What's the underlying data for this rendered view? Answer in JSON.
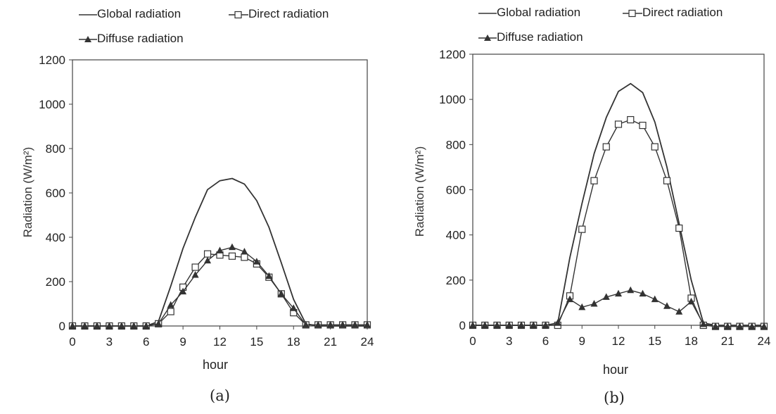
{
  "chart_data": [
    {
      "type": "line",
      "caption": "(a)",
      "xlabel": "hour",
      "ylabel": "Radiation (W/m²)",
      "xlim": [
        0,
        24
      ],
      "ylim": [
        0,
        1200
      ],
      "xticks": [
        0,
        3,
        6,
        9,
        12,
        15,
        18,
        21,
        24
      ],
      "yticks": [
        0,
        200,
        400,
        600,
        800,
        1000,
        1200
      ],
      "legend": {
        "position": "top-left, above plot"
      },
      "grid": false,
      "series": [
        {
          "name": "Global radiation",
          "marker": "none",
          "color": "#333333",
          "x": [
            0,
            1,
            2,
            3,
            4,
            5,
            6,
            7,
            8,
            9,
            10,
            11,
            12,
            13,
            14,
            15,
            16,
            17,
            18,
            19,
            20,
            21,
            22,
            23,
            24
          ],
          "y": [
            0,
            0,
            0,
            0,
            0,
            0,
            0,
            20,
            180,
            350,
            490,
            615,
            655,
            665,
            640,
            565,
            445,
            285,
            120,
            10,
            0,
            0,
            0,
            0,
            0
          ]
        },
        {
          "name": "Direct radiation",
          "marker": "square",
          "color": "#333333",
          "x": [
            0,
            1,
            2,
            3,
            4,
            5,
            6,
            7,
            8,
            9,
            10,
            11,
            12,
            13,
            14,
            15,
            16,
            17,
            18,
            19,
            20,
            21,
            22,
            23,
            24
          ],
          "y": [
            0,
            0,
            0,
            0,
            0,
            0,
            0,
            10,
            65,
            175,
            265,
            325,
            320,
            315,
            310,
            280,
            220,
            145,
            60,
            5,
            5,
            5,
            5,
            5,
            5
          ]
        },
        {
          "name": "Diffuse radiation",
          "marker": "triangle",
          "color": "#333333",
          "x": [
            0,
            1,
            2,
            3,
            4,
            5,
            6,
            7,
            8,
            9,
            10,
            11,
            12,
            13,
            14,
            15,
            16,
            17,
            18,
            19,
            20,
            21,
            22,
            23,
            24
          ],
          "y": [
            0,
            0,
            0,
            0,
            0,
            0,
            0,
            10,
            95,
            155,
            230,
            295,
            340,
            355,
            335,
            290,
            225,
            145,
            80,
            5,
            5,
            5,
            5,
            5,
            5
          ]
        }
      ]
    },
    {
      "type": "line",
      "caption": "(b)",
      "xlabel": "hour",
      "ylabel": "Radiation (W/m²)",
      "xlim": [
        0,
        24
      ],
      "ylim": [
        0,
        1200
      ],
      "xticks": [
        0,
        3,
        6,
        9,
        12,
        15,
        18,
        21,
        24
      ],
      "yticks": [
        0,
        200,
        400,
        600,
        800,
        1000,
        1200
      ],
      "legend": {
        "position": "top-left, above plot"
      },
      "grid": false,
      "series": [
        {
          "name": "Global radiation",
          "marker": "none",
          "color": "#333333",
          "x": [
            0,
            1,
            2,
            3,
            4,
            5,
            6,
            7,
            8,
            9,
            10,
            11,
            12,
            13,
            14,
            15,
            16,
            17,
            18,
            19,
            20,
            21,
            22,
            23,
            24
          ],
          "y": [
            0,
            0,
            0,
            0,
            0,
            0,
            0,
            10,
            300,
            540,
            760,
            920,
            1035,
            1070,
            1030,
            900,
            700,
            450,
            200,
            10,
            0,
            0,
            0,
            0,
            0
          ]
        },
        {
          "name": "Direct radiation",
          "marker": "square",
          "color": "#333333",
          "x": [
            0,
            1,
            2,
            3,
            4,
            5,
            6,
            7,
            8,
            9,
            10,
            11,
            12,
            13,
            14,
            15,
            16,
            17,
            18,
            19,
            20,
            21,
            22,
            23,
            24
          ],
          "y": [
            0,
            0,
            0,
            0,
            0,
            0,
            0,
            0,
            130,
            425,
            640,
            790,
            890,
            910,
            885,
            790,
            640,
            430,
            120,
            0,
            -5,
            -5,
            -5,
            -5,
            -5
          ]
        },
        {
          "name": "Diffuse radiation",
          "marker": "triangle",
          "color": "#333333",
          "x": [
            0,
            1,
            2,
            3,
            4,
            5,
            6,
            7,
            8,
            9,
            10,
            11,
            12,
            13,
            14,
            15,
            16,
            17,
            18,
            19,
            20,
            21,
            22,
            23,
            24
          ],
          "y": [
            0,
            0,
            0,
            0,
            0,
            0,
            0,
            10,
            115,
            80,
            95,
            125,
            140,
            155,
            140,
            115,
            85,
            60,
            105,
            5,
            -5,
            -5,
            -5,
            -5,
            -5
          ]
        }
      ]
    }
  ]
}
